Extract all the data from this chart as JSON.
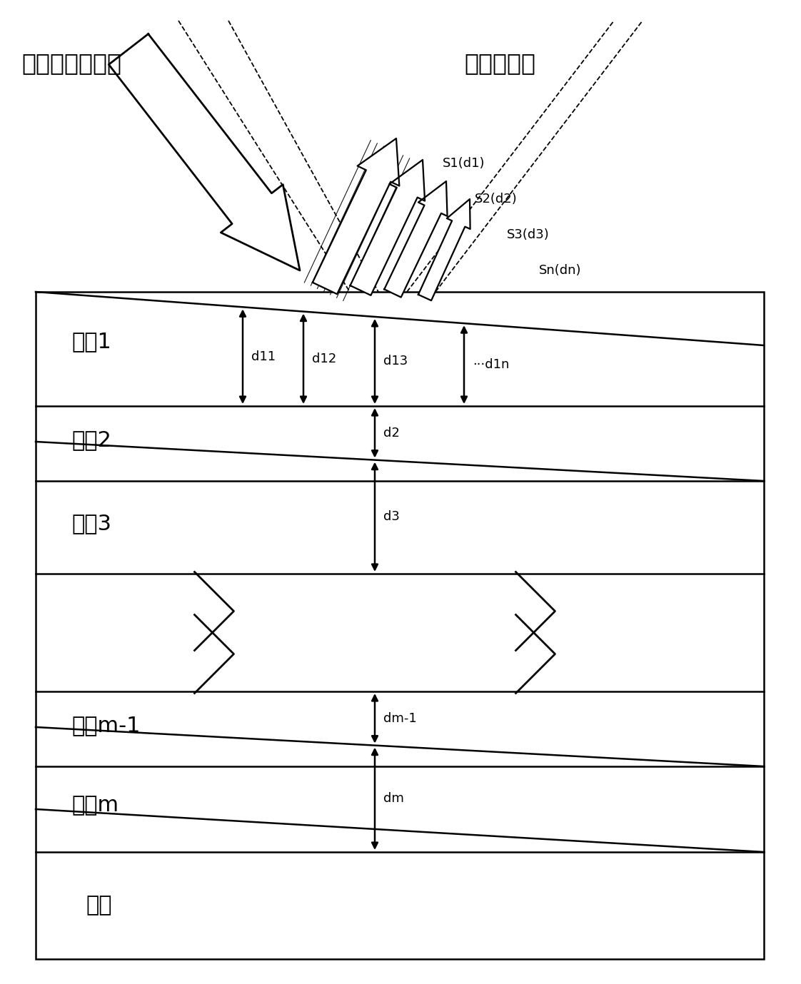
{
  "bg_color": "#ffffff",
  "text_color": "#000000",
  "label_incident": "入射完全偏振光",
  "label_thickness": "厚度不均匀",
  "label_film1": "薄膜1",
  "label_film2": "薄膜2",
  "label_film3": "薄膜3",
  "label_filmm1": "薄膜m-1",
  "label_filmm": "薄膜m",
  "label_substrate": "基底",
  "label_s1": "S1(d1)",
  "label_s2": "S2(d2)",
  "label_s3": "S3(d3)",
  "label_sn": "Sn(dn)",
  "label_d11": "d11",
  "label_d12": "d12",
  "label_d13": "d13",
  "label_d1n": "···d1n",
  "label_d2": "d2",
  "label_d3": "d3",
  "label_dm1": "dm-1",
  "label_dm": "dm",
  "figsize": [
    11.22,
    13.79
  ],
  "dpi": 100
}
